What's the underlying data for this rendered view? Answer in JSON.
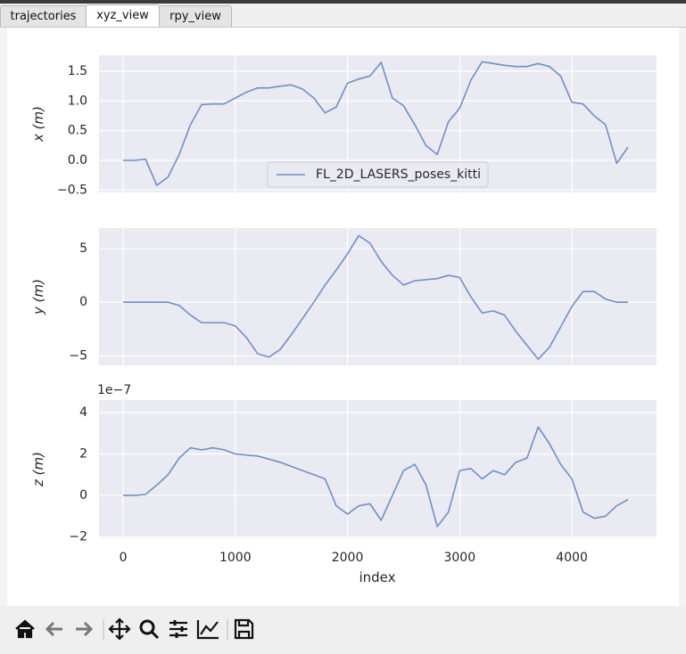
{
  "tabs": [
    "trajectories",
    "xyz_view",
    "rpy_view"
  ],
  "chart_data": {
    "type": "line",
    "xlabel": "index",
    "x": [
      0,
      100,
      200,
      300,
      400,
      500,
      600,
      700,
      800,
      900,
      1000,
      1100,
      1200,
      1300,
      1400,
      1500,
      1600,
      1700,
      1800,
      1900,
      2000,
      2100,
      2200,
      2300,
      2400,
      2500,
      2600,
      2700,
      2800,
      2900,
      3000,
      3100,
      3200,
      3300,
      3400,
      3500,
      3600,
      3700,
      3800,
      3900,
      4000,
      4100,
      4200,
      4300,
      4400,
      4500
    ],
    "xlim": [
      -215,
      4755
    ],
    "xticks": [
      0,
      1000,
      2000,
      3000,
      4000
    ],
    "grid": true,
    "legend": "lower center",
    "subplots": [
      {
        "ylabel": "x (m)",
        "ylim": [
          -0.54,
          1.77
        ],
        "yticks": [
          {
            "value": -0.5,
            "label": "−0.5"
          },
          {
            "value": 0,
            "label": "0.0"
          },
          0.5,
          {
            "value": 1,
            "label": "1.0"
          },
          1.5
        ],
        "series": [
          {
            "name": "FL_2D_LASERS_poses_kitti",
            "color": "#6f8fc7",
            "values": [
              0,
              0,
              0.02,
              -0.42,
              -0.28,
              0.1,
              0.6,
              0.94,
              0.95,
              0.95,
              1.05,
              1.15,
              1.22,
              1.22,
              1.25,
              1.27,
              1.2,
              1.05,
              0.8,
              0.9,
              1.3,
              1.37,
              1.42,
              1.65,
              1.05,
              0.92,
              0.6,
              0.25,
              0.1,
              0.65,
              0.88,
              1.35,
              1.66,
              1.63,
              1.6,
              1.58,
              1.58,
              1.63,
              1.58,
              1.42,
              0.98,
              0.95,
              0.75,
              0.6,
              -0.05,
              0.22
            ]
          }
        ]
      },
      {
        "ylabel": "y (m)",
        "ylim": [
          -5.87,
          6.9
        ],
        "yticks": [
          {
            "value": -5,
            "label": "−5"
          },
          0,
          5
        ],
        "series": [
          {
            "color": "#6f8fc7",
            "values": [
              0,
              0,
              0,
              0,
              0,
              -0.3,
              -1.2,
              -1.9,
              -1.9,
              -1.9,
              -2.2,
              -3.3,
              -4.8,
              -5.1,
              -4.4,
              -3,
              -1.5,
              0,
              1.6,
              3,
              4.5,
              6.2,
              5.5,
              3.8,
              2.5,
              1.6,
              2,
              2.1,
              2.2,
              2.5,
              2.3,
              0.5,
              -1,
              -0.8,
              -1.2,
              -2.7,
              -4,
              -5.3,
              -4.2,
              -2.3,
              -0.4,
              1,
              1,
              0.3,
              0,
              0
            ]
          }
        ]
      },
      {
        "ylabel": "z (m)",
        "offset": "1e−7",
        "ylim": [
          -2.06,
          4.6
        ],
        "yticks": [
          {
            "value": -2,
            "label": "−2"
          },
          0,
          2,
          4
        ],
        "series": [
          {
            "color": "#6f8fc7",
            "values": [
              0,
              0,
              0.05,
              0.5,
              1,
              1.8,
              2.3,
              2.2,
              2.3,
              2.2,
              2,
              1.95,
              1.9,
              1.75,
              1.6,
              1.4,
              1.2,
              1,
              0.8,
              -0.5,
              -0.9,
              -0.5,
              -0.4,
              -1.2,
              0,
              1.2,
              1.5,
              0.5,
              -1.5,
              -0.8,
              1.2,
              1.3,
              0.8,
              1.2,
              1,
              1.6,
              1.8,
              3.3,
              2.5,
              1.5,
              0.8,
              -0.8,
              -1.1,
              -1,
              -0.5,
              -0.2
            ]
          }
        ]
      }
    ]
  }
}
